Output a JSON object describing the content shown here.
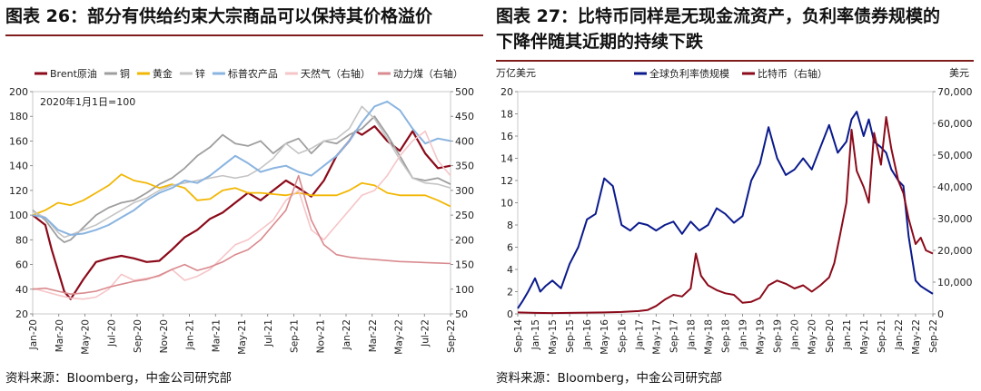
{
  "left": {
    "title": "图表 26：部分有供给约束大宗商品可以保持其价格溢价",
    "source": "资料来源：Bloomberg，中金公司研究部",
    "chart_data": {
      "type": "line",
      "annotation": "2020年1月1日=100",
      "x_ticks": [
        "Jan-20",
        "Mar-20",
        "May-20",
        "Jul-20",
        "Sep-20",
        "Nov-20",
        "Jan-21",
        "Mar-21",
        "May-21",
        "Jul-21",
        "Sep-21",
        "Nov-21",
        "Jan-22",
        "Mar-22",
        "May-22",
        "Jul-22",
        "Sep-22"
      ],
      "x_range": [
        0,
        33
      ],
      "y_left": {
        "ticks": [
          "20",
          "40",
          "60",
          "80",
          "100",
          "120",
          "140",
          "160",
          "180",
          "200"
        ],
        "range": [
          20,
          200
        ]
      },
      "y_right": {
        "ticks": [
          "50",
          "100",
          "150",
          "200",
          "250",
          "300",
          "350",
          "400",
          "450",
          "500"
        ],
        "range": [
          50,
          500
        ]
      },
      "legend_placement": "top",
      "series": [
        {
          "name": "Brent原油",
          "color": "#8b0a1a",
          "axis": "left",
          "width": 2.2,
          "x": [
            0,
            1,
            1.5,
            2,
            2.5,
            3,
            3.5,
            4,
            5,
            6,
            7,
            8,
            9,
            10,
            11,
            12,
            13,
            14,
            15,
            16,
            17,
            18,
            19,
            20,
            21,
            22,
            23,
            24,
            25,
            25.5,
            26,
            27,
            28,
            29,
            30,
            31,
            32,
            33
          ],
          "y": [
            100,
            92,
            72,
            55,
            38,
            32,
            40,
            48,
            62,
            65,
            67,
            65,
            62,
            63,
            72,
            82,
            88,
            97,
            102,
            110,
            118,
            112,
            120,
            128,
            122,
            115,
            128,
            148,
            160,
            168,
            165,
            172,
            160,
            152,
            168,
            150,
            138,
            140
          ]
        },
        {
          "name": "铜",
          "color": "#9e9e9e",
          "axis": "left",
          "width": 1.8,
          "x": [
            0,
            1,
            2,
            2.5,
            3,
            4,
            5,
            6,
            7,
            8,
            9,
            10,
            11,
            12,
            13,
            14,
            15,
            16,
            17,
            18,
            19,
            20,
            21,
            22,
            23,
            24,
            25,
            26,
            27,
            28,
            29,
            30,
            31,
            32,
            33
          ],
          "y": [
            104,
            96,
            82,
            78,
            80,
            90,
            100,
            106,
            110,
            112,
            118,
            125,
            130,
            138,
            148,
            155,
            165,
            158,
            156,
            160,
            150,
            158,
            162,
            150,
            160,
            158,
            165,
            170,
            180,
            165,
            148,
            130,
            128,
            130,
            125
          ]
        },
        {
          "name": "黄金",
          "color": "#f2b705",
          "axis": "left",
          "width": 1.8,
          "x": [
            0,
            1,
            2,
            3,
            4,
            5,
            6,
            7,
            8,
            9,
            10,
            11,
            12,
            13,
            14,
            15,
            16,
            17,
            18,
            19,
            20,
            21,
            22,
            23,
            24,
            25,
            26,
            27,
            28,
            29,
            30,
            31,
            32,
            33
          ],
          "y": [
            100,
            104,
            110,
            108,
            112,
            118,
            124,
            133,
            128,
            126,
            122,
            125,
            122,
            112,
            113,
            120,
            122,
            118,
            118,
            117,
            116,
            118,
            116,
            116,
            116,
            120,
            126,
            124,
            118,
            116,
            116,
            116,
            112,
            107
          ]
        },
        {
          "name": "锌",
          "color": "#c4c4c4",
          "axis": "left",
          "width": 1.6,
          "x": [
            0,
            1,
            2,
            2.5,
            3,
            4,
            5,
            6,
            7,
            8,
            9,
            10,
            11,
            12,
            13,
            14,
            15,
            16,
            17,
            18,
            19,
            20,
            21,
            22,
            23,
            24,
            25,
            26,
            27,
            28,
            29,
            30,
            31,
            32,
            33
          ],
          "y": [
            103,
            98,
            86,
            82,
            84,
            88,
            92,
            98,
            104,
            110,
            114,
            120,
            124,
            126,
            128,
            130,
            132,
            130,
            132,
            138,
            146,
            158,
            150,
            154,
            160,
            162,
            170,
            188,
            178,
            162,
            145,
            130,
            126,
            125,
            122
          ]
        },
        {
          "name": "标普农产品",
          "color": "#8ab4e0",
          "axis": "left",
          "width": 2,
          "x": [
            0,
            1,
            2,
            3,
            4,
            5,
            6,
            7,
            8,
            9,
            10,
            11,
            12,
            13,
            14,
            15,
            16,
            17,
            18,
            19,
            20,
            21,
            22,
            23,
            24,
            25,
            26,
            27,
            28,
            29,
            30,
            31,
            32,
            33
          ],
          "y": [
            100,
            98,
            88,
            84,
            85,
            88,
            92,
            98,
            104,
            112,
            118,
            122,
            128,
            126,
            132,
            140,
            148,
            142,
            135,
            138,
            140,
            135,
            132,
            140,
            148,
            160,
            175,
            188,
            192,
            185,
            170,
            158,
            162,
            160
          ]
        },
        {
          "name": "天然气（右轴）",
          "color": "#f6c5c8",
          "axis": "right",
          "width": 1.6,
          "x": [
            0,
            1,
            2,
            3,
            4,
            5,
            6,
            7,
            8,
            9,
            10,
            11,
            12,
            13,
            14,
            15,
            16,
            17,
            18,
            19,
            20,
            21,
            22,
            23,
            24,
            25,
            26,
            27,
            28,
            29,
            30,
            31,
            32,
            33
          ],
          "y": [
            102,
            95,
            88,
            82,
            80,
            84,
            100,
            130,
            118,
            122,
            126,
            140,
            118,
            126,
            140,
            165,
            190,
            200,
            220,
            240,
            280,
            300,
            220,
            200,
            230,
            260,
            290,
            300,
            330,
            370,
            400,
            420,
            360,
            330
          ]
        },
        {
          "name": "动力煤（右轴）",
          "color": "#d98a8e",
          "axis": "right",
          "width": 1.6,
          "x": [
            0,
            1,
            2,
            3,
            4,
            5,
            6,
            7,
            8,
            9,
            10,
            11,
            12,
            13,
            14,
            15,
            16,
            17,
            18,
            19,
            20,
            21,
            22,
            23,
            24,
            25,
            26,
            27,
            28,
            29,
            30,
            31,
            32,
            33
          ],
          "y": [
            100,
            102,
            96,
            90,
            92,
            96,
            104,
            110,
            116,
            120,
            128,
            140,
            150,
            138,
            145,
            155,
            170,
            180,
            200,
            230,
            260,
            330,
            240,
            190,
            170,
            165,
            162,
            160,
            158,
            156,
            155,
            154,
            153,
            152
          ]
        }
      ]
    }
  },
  "right": {
    "title_line1": "图表 27：比特币同样是无现金流资产，负利率债券规模的",
    "title_line2": "下降伴随其近期的持续下跌",
    "source": "资料来源：Bloomberg，中金公司研究部",
    "chart_data": {
      "type": "line",
      "y_left_unit": "万亿美元",
      "y_right_unit": "美元",
      "x_ticks": [
        "Sep-14",
        "Jan-15",
        "May-15",
        "Sep-15",
        "Jan-16",
        "May-16",
        "Sep-16",
        "Jan-17",
        "May-17",
        "Sep-17",
        "Jan-18",
        "May-18",
        "Sep-18",
        "Jan-19",
        "May-19",
        "Sep-19",
        "Jan-20",
        "May-20",
        "Sep-20",
        "Jan-21",
        "May-21",
        "Sep-21",
        "Jan-22",
        "May-22",
        "Sep-22"
      ],
      "x_range": [
        0,
        24
      ],
      "y_left": {
        "ticks": [
          "0",
          "2",
          "4",
          "6",
          "8",
          "10",
          "12",
          "14",
          "16",
          "18",
          "20"
        ],
        "range": [
          0,
          20
        ]
      },
      "y_right": {
        "ticks": [
          "0",
          "10,000",
          "20,000",
          "30,000",
          "40,000",
          "50,000",
          "60,000",
          "70,000"
        ],
        "range": [
          0,
          70000
        ]
      },
      "legend_placement": "top",
      "series": [
        {
          "name": "全球负利率债规模",
          "color": "#0a1a8c",
          "axis": "left",
          "width": 2,
          "x": [
            0,
            0.3,
            0.6,
            1,
            1.3,
            1.6,
            2,
            2.5,
            3,
            3.5,
            4,
            4.5,
            5,
            5.5,
            6,
            6.5,
            7,
            7.5,
            8,
            8.5,
            9,
            9.5,
            10,
            10.5,
            11,
            11.5,
            12,
            12.5,
            13,
            13.5,
            14,
            14.5,
            15,
            15.5,
            16,
            16.5,
            17,
            17.5,
            18,
            18.5,
            19,
            19.3,
            19.6,
            20,
            20.3,
            20.6,
            21,
            21.3,
            21.6,
            22,
            22.3,
            22.6,
            23,
            23.3,
            23.6,
            24
          ],
          "y": [
            0.5,
            1.2,
            2.0,
            3.2,
            2.0,
            2.5,
            3.0,
            2.3,
            4.5,
            6.0,
            8.5,
            9.0,
            12.2,
            11.5,
            8.0,
            7.5,
            8.2,
            8.0,
            7.5,
            8.0,
            8.3,
            7.2,
            8.3,
            7.5,
            8.0,
            9.5,
            9.0,
            8.2,
            8.8,
            12.0,
            13.5,
            16.8,
            14.0,
            12.5,
            13.0,
            14.0,
            13.0,
            15.0,
            17.0,
            14.5,
            15.5,
            17.5,
            18.2,
            16.0,
            17.5,
            15.5,
            15.0,
            14.5,
            13.0,
            12.0,
            11.5,
            7.0,
            3.0,
            2.5,
            2.2,
            1.8
          ]
        },
        {
          "name": "比特币（右轴）",
          "color": "#8b0a1a",
          "axis": "right",
          "width": 2,
          "x": [
            0,
            1,
            2,
            3,
            4,
            5,
            6,
            7,
            7.5,
            8,
            8.5,
            9,
            9.5,
            10,
            10.3,
            10.6,
            11,
            11.5,
            12,
            12.5,
            13,
            13.5,
            14,
            14.5,
            15,
            15.5,
            16,
            16.5,
            17,
            17.5,
            18,
            18.3,
            18.6,
            19,
            19.3,
            19.6,
            20,
            20.3,
            20.6,
            21,
            21.3,
            21.6,
            22,
            22.3,
            22.6,
            23,
            23.3,
            23.6,
            24
          ],
          "y": [
            450,
            300,
            250,
            300,
            400,
            450,
            600,
            900,
            1200,
            2500,
            4500,
            6000,
            5500,
            8000,
            19000,
            12000,
            9000,
            7500,
            6500,
            6000,
            3500,
            3800,
            5000,
            9000,
            10500,
            9500,
            8000,
            9000,
            7000,
            9000,
            11500,
            16000,
            24000,
            35000,
            58000,
            45000,
            40000,
            35000,
            57000,
            47000,
            62000,
            52000,
            42000,
            38000,
            30000,
            22000,
            24000,
            20000,
            19000
          ]
        }
      ]
    }
  }
}
